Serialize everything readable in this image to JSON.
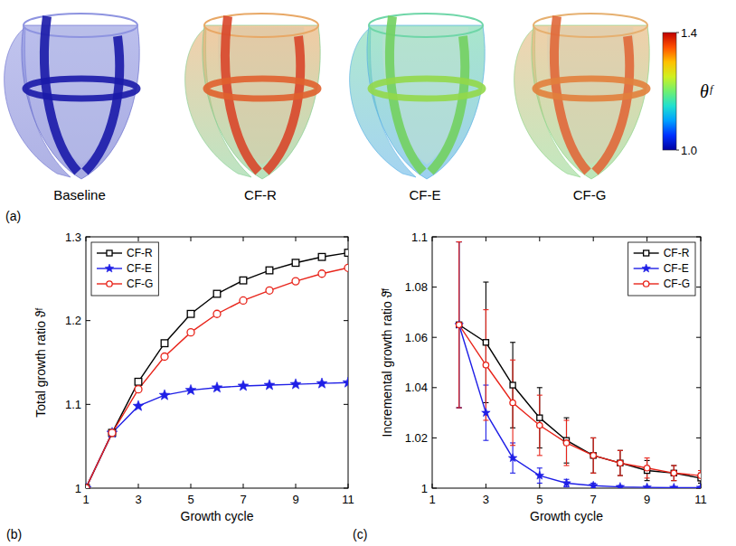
{
  "panel_a": {
    "panel": "(a)",
    "models": [
      "Baseline",
      "CF-R",
      "CF-E",
      "CF-G"
    ],
    "colorbar": {
      "label": "θᶠ",
      "range": [
        1.0,
        1.4
      ],
      "ticks": [
        1.4,
        {
          "value": 1.0,
          "label": "1.0"
        }
      ]
    }
  },
  "chart_data": [
    {
      "type": "line",
      "panel": "(b)",
      "xlabel": "Growth cycle",
      "ylabel": "Total growth ratio ϑᶠ",
      "x": [
        1,
        2,
        3,
        4,
        5,
        6,
        7,
        8,
        9,
        10,
        11
      ],
      "xlim": [
        1,
        11
      ],
      "xticks": [
        1,
        3,
        5,
        7,
        9,
        11
      ],
      "ylim": [
        1,
        1.3
      ],
      "yticks": [
        1,
        1.1,
        1.2,
        1.3
      ],
      "legend": "top-left",
      "series": [
        {
          "name": "CF-R",
          "color": "#000000",
          "marker": "square",
          "values": [
            1,
            1.066,
            1.127,
            1.173,
            1.208,
            1.232,
            1.248,
            1.26,
            1.269,
            1.276,
            1.281
          ]
        },
        {
          "name": "CF-E",
          "color": "#1f1fe6",
          "marker": "star",
          "values": [
            1,
            1.066,
            1.098,
            1.111,
            1.117,
            1.12,
            1.122,
            1.123,
            1.124,
            1.125,
            1.126
          ]
        },
        {
          "name": "CF-G",
          "color": "#e8241a",
          "marker": "circle",
          "values": [
            1,
            1.066,
            1.118,
            1.157,
            1.186,
            1.208,
            1.224,
            1.236,
            1.247,
            1.256,
            1.263
          ]
        }
      ]
    },
    {
      "type": "line",
      "panel": "(c)",
      "xlabel": "Growth cycle",
      "ylabel": "Incremental growth ratio ϑ̄ᶠ",
      "x": [
        2,
        3,
        4,
        5,
        6,
        7,
        8,
        9,
        10,
        11
      ],
      "xlim": [
        1,
        11
      ],
      "xticks": [
        1,
        3,
        5,
        7,
        9,
        11
      ],
      "ylim": [
        1,
        1.1
      ],
      "yticks": [
        1,
        1.02,
        1.04,
        1.06,
        1.08,
        1.1
      ],
      "legend": "top-right",
      "series": [
        {
          "name": "CF-R",
          "color": "#000000",
          "marker": "square",
          "values": [
            1.065,
            1.058,
            1.041,
            1.028,
            1.019,
            1.013,
            1.01,
            1.007,
            1.006,
            1.004
          ],
          "errors": [
            0.033,
            0.024,
            0.017,
            0.012,
            0.009,
            0.007,
            0.005,
            0.004,
            0.003,
            0.002
          ]
        },
        {
          "name": "CF-E",
          "color": "#1f1fe6",
          "marker": "star",
          "values": [
            1.065,
            1.03,
            1.012,
            1.005,
            1.002,
            1.001,
            1.0005,
            1.0003,
            1.0002,
            1.0002
          ],
          "errors": [
            0.033,
            0.011,
            0.006,
            0.003,
            0.0015,
            0.001,
            0.0005,
            0.0003,
            0.0002,
            0.0002
          ]
        },
        {
          "name": "CF-G",
          "color": "#e8241a",
          "marker": "circle",
          "values": [
            1.065,
            1.049,
            1.034,
            1.025,
            1.018,
            1.013,
            1.01,
            1.008,
            1.006,
            1.005
          ],
          "errors": [
            0.033,
            0.022,
            0.017,
            0.012,
            0.009,
            0.007,
            0.005,
            0.004,
            0.003,
            0.002
          ]
        }
      ]
    }
  ]
}
